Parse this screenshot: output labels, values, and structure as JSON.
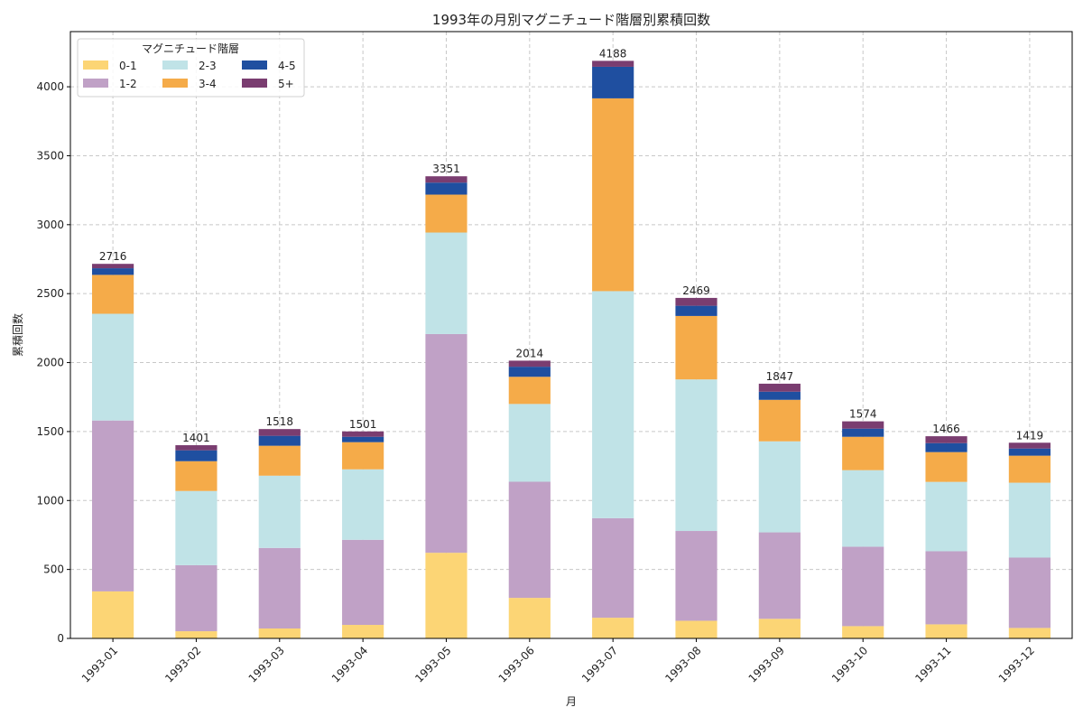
{
  "chart_data": {
    "type": "bar",
    "stacked": true,
    "title": "1993年の月別マグニチュード階層別累積回数",
    "xlabel": "月",
    "ylabel": "累積回数",
    "ylim": [
      0,
      4400
    ],
    "yticks": [
      0,
      500,
      1000,
      1500,
      2000,
      2500,
      3000,
      3500,
      4000
    ],
    "grid": true,
    "legend": {
      "title": "マグニチュード階層",
      "placement": "top-left",
      "columns": 3
    },
    "categories": [
      "1993-01",
      "1993-02",
      "1993-03",
      "1993-04",
      "1993-05",
      "1993-06",
      "1993-07",
      "1993-08",
      "1993-09",
      "1993-10",
      "1993-11",
      "1993-12"
    ],
    "totals": [
      2716,
      1401,
      1518,
      1501,
      3351,
      2014,
      4188,
      2469,
      1847,
      1574,
      1466,
      1419
    ],
    "series": [
      {
        "name": "0-1",
        "color": "#FCD575",
        "values": [
          341,
          52,
          72,
          98,
          621,
          294,
          150,
          128,
          142,
          89,
          102,
          76
        ]
      },
      {
        "name": "1-2",
        "color": "#C0A1C6",
        "values": [
          1239,
          479,
          584,
          617,
          1586,
          842,
          722,
          651,
          627,
          576,
          530,
          510
        ]
      },
      {
        "name": "2-3",
        "color": "#C0E3E7",
        "values": [
          774,
          538,
          524,
          511,
          736,
          564,
          1646,
          1099,
          660,
          555,
          503,
          543
        ]
      },
      {
        "name": "3-4",
        "color": "#F5AB49",
        "values": [
          282,
          216,
          217,
          197,
          275,
          197,
          1398,
          460,
          301,
          242,
          216,
          196
        ]
      },
      {
        "name": "4-5",
        "color": "#1F4FA0",
        "values": [
          48,
          79,
          72,
          39,
          87,
          73,
          229,
          74,
          59,
          59,
          65,
          52
        ]
      },
      {
        "name": "5+",
        "color": "#7A3D70",
        "values": [
          32,
          37,
          49,
          39,
          46,
          44,
          43,
          57,
          58,
          53,
          50,
          42
        ]
      }
    ]
  }
}
